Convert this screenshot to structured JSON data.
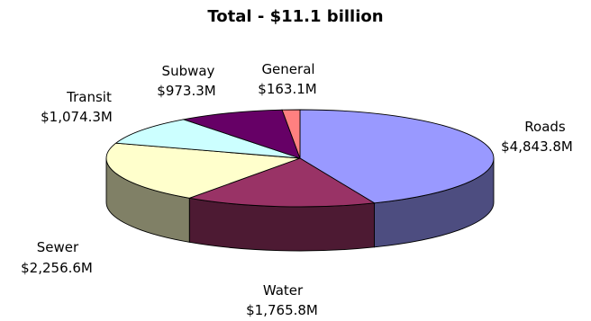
{
  "chart_data": {
    "type": "pie",
    "title": "Total - $11.1 billion",
    "categories": [
      "Roads",
      "Water",
      "Sewer",
      "Transit",
      "Subway",
      "General"
    ],
    "values": [
      4843.8,
      1765.8,
      2256.6,
      1074.3,
      973.3,
      163.1
    ],
    "value_labels": [
      "$4,843.8M",
      "$1,765.8M",
      "$2,256.6M",
      "$1,074.3M",
      "$973.3M",
      "$163.1M"
    ],
    "colors": [
      "#9999ff",
      "#993366",
      "#ffffcc",
      "#ccffff",
      "#660066",
      "#ff8080"
    ],
    "style": "3d-pie",
    "legend": "none"
  }
}
